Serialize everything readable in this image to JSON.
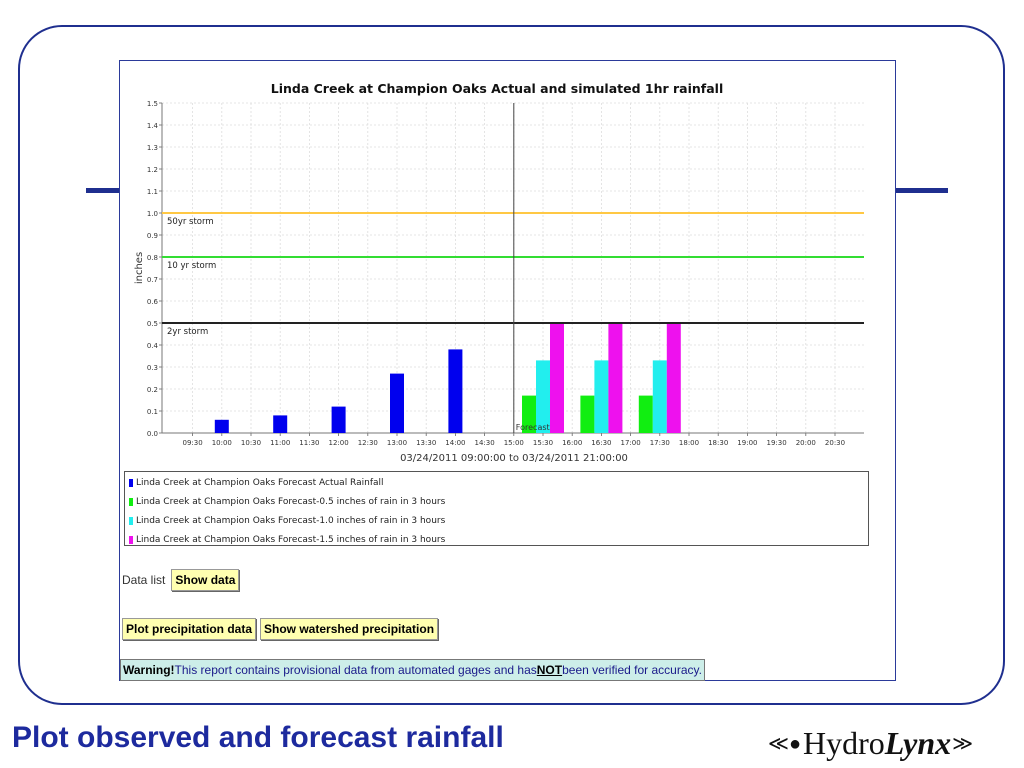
{
  "slide": {
    "title": "Plot observed and forecast rainfall"
  },
  "logo": {
    "text_prefix": "Hydro",
    "text_suffix": "Lynx",
    "icon": "water-drop-swoosh-icon"
  },
  "colors": {
    "frame": "#1f2f8f",
    "title": "#1d2a9e",
    "actual": "#0000ee",
    "forecast_05": "#11ee11",
    "forecast_10": "#22eeee",
    "forecast_15": "#ee11ee",
    "storm_50": "#ffc844",
    "storm_10": "#33dd33",
    "storm_2": "#222222",
    "button_bg": "#ffffb0",
    "warning_bg": "#cdeee9"
  },
  "chart_data": {
    "type": "bar",
    "title": "Linda Creek at Champion Oaks Actual and simulated 1hr rainfall",
    "ylabel": "inches",
    "xlabel": "03/24/2011 09:00:00 to 03/24/2011 21:00:00",
    "ylim": [
      0,
      1.5
    ],
    "y_ticks": [
      "0.0",
      "0.1",
      "0.2",
      "0.3",
      "0.4",
      "0.5",
      "0.6",
      "0.7",
      "0.8",
      "0.9",
      "1.0",
      "1.1",
      "1.2",
      "1.3",
      "1.4",
      "1.5"
    ],
    "categories": [
      "09:30",
      "10:00",
      "10:30",
      "11:00",
      "11:30",
      "12:00",
      "12:30",
      "13:00",
      "13:30",
      "14:00",
      "14:30",
      "15:00",
      "15:30",
      "16:00",
      "16:30",
      "17:00",
      "17:30",
      "18:00",
      "18:30",
      "19:00",
      "19:30",
      "20:00",
      "20:30"
    ],
    "grid": true,
    "series": [
      {
        "name": "Linda Creek at Champion Oaks Forecast Actual Rainfall",
        "color": "#0000ee",
        "points": [
          [
            "10:00",
            0.06
          ],
          [
            "11:00",
            0.08
          ],
          [
            "12:00",
            0.12
          ],
          [
            "13:00",
            0.27
          ],
          [
            "14:00",
            0.38
          ]
        ]
      },
      {
        "name": "Linda Creek at Champion Oaks Forecast-0.5 inches of rain in 3 hours",
        "color": "#11ee11",
        "points": [
          [
            "15:30",
            0.17
          ],
          [
            "16:30",
            0.17
          ],
          [
            "17:30",
            0.17
          ]
        ]
      },
      {
        "name": "Linda Creek at Champion Oaks Forecast-1.0 inches of rain in 3 hours",
        "color": "#22eeee",
        "points": [
          [
            "15:30",
            0.33
          ],
          [
            "16:30",
            0.33
          ],
          [
            "17:30",
            0.33
          ]
        ]
      },
      {
        "name": "Linda Creek at Champion Oaks Forecast-1.5 inches of rain in 3 hours",
        "color": "#ee11ee",
        "points": [
          [
            "15:30",
            0.5
          ],
          [
            "16:30",
            0.5
          ],
          [
            "17:30",
            0.5
          ]
        ]
      }
    ],
    "thresholds": [
      {
        "label": "50yr storm",
        "value": 1.0,
        "color": "#ffc844"
      },
      {
        "label": "10 yr storm",
        "value": 0.8,
        "color": "#33dd33"
      },
      {
        "label": "2yr storm",
        "value": 0.5,
        "color": "#222222"
      }
    ],
    "marker": {
      "label": "Forecast",
      "x": "15:00"
    },
    "legend_position": "below"
  },
  "controls": {
    "data_list_label": "Data list",
    "show_data_label": "Show data",
    "plot_precip_label": "Plot precipitation data",
    "show_watershed_label": "Show watershed precipitation"
  },
  "warning": {
    "bold_prefix": "Warning!",
    "text_before": " This report contains provisional data from automated gages and has ",
    "emphasis": "NOT",
    "text_after": " been verified for accuracy."
  }
}
